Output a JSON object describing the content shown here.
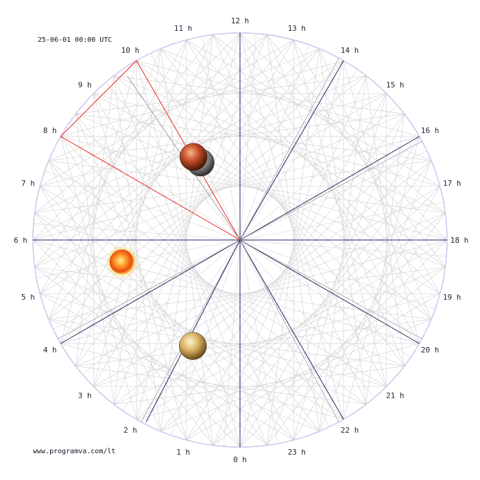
{
  "header": {
    "timestamp": "25-06-01 00:00 UTC"
  },
  "footer": {
    "website": "www.programva.com/lt"
  },
  "colors": {
    "outer_circle": "#c8c8ee",
    "web_lines": "#d4d4d4",
    "axis_lines": "#202060",
    "highlight": "#ee2222",
    "labels": "#222233"
  },
  "hour_labels": [
    "0 h",
    "1 h",
    "2 h",
    "3 h",
    "4 h",
    "5 h",
    "6 h",
    "7 h",
    "8 h",
    "9 h",
    "10 h",
    "11 h",
    "12 h",
    "13 h",
    "14 h",
    "15 h",
    "16 h",
    "17 h",
    "18 h",
    "19 h",
    "20 h",
    "21 h",
    "22 h",
    "23 h"
  ],
  "dark_axis_hours": [
    0,
    4,
    6,
    12,
    14,
    16,
    18,
    20,
    22
  ],
  "red_triangle_hours": [
    8,
    10
  ],
  "bodies": [
    {
      "name": "moon-icon",
      "hour": 10.2,
      "radius_fraction": 0.42
    },
    {
      "name": "mars-icon",
      "hour": 10.05,
      "radius_fraction": 0.46
    },
    {
      "name": "sun-icon",
      "hour": 5.3,
      "radius_fraction": 0.58
    },
    {
      "name": "venus-icon",
      "hour": 1.6,
      "radius_fraction": 0.56
    }
  ]
}
